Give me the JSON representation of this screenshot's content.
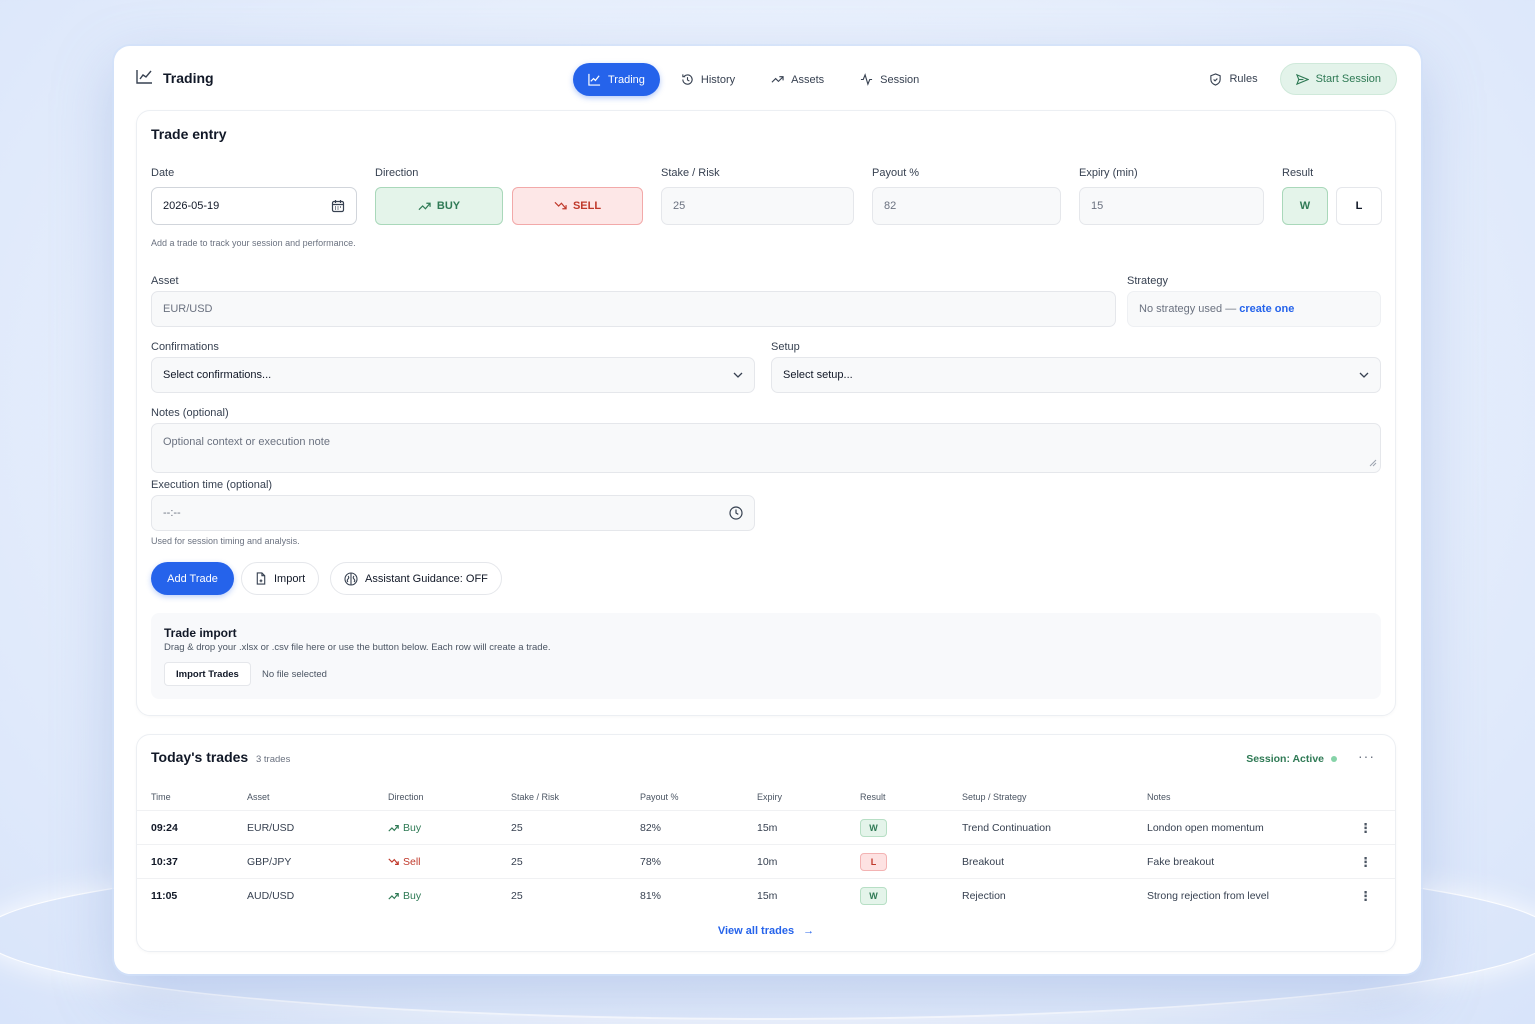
{
  "app": {
    "title": "Trading"
  },
  "nav": {
    "tabs": [
      {
        "label": "Trading",
        "icon": "chart-icon",
        "active": true
      },
      {
        "label": "History",
        "icon": "history-icon",
        "active": false
      },
      {
        "label": "Assets",
        "icon": "trend-icon",
        "active": false
      },
      {
        "label": "Session",
        "icon": "activity-icon",
        "active": false
      }
    ]
  },
  "header_actions": {
    "rules_label": "Rules",
    "start_session_label": "Start Session"
  },
  "entry": {
    "title": "Trade entry",
    "date": {
      "label": "Date",
      "value": "2026-05-19"
    },
    "direction": {
      "label": "Direction",
      "buy_label": "BUY",
      "sell_label": "SELL"
    },
    "stake": {
      "label": "Stake / Risk",
      "value": "25"
    },
    "payout": {
      "label": "Payout %",
      "value": "82"
    },
    "expiry": {
      "label": "Expiry (min)",
      "value": "15"
    },
    "result": {
      "label": "Result",
      "win_label": "W",
      "loss_label": "L",
      "selected": "W"
    },
    "help_text": "Add a trade to track your session and performance.",
    "asset": {
      "label": "Asset",
      "placeholder": "EUR/USD"
    },
    "strategy": {
      "label": "Strategy",
      "text": "No strategy used — ",
      "link": "create one"
    },
    "confirmations": {
      "label": "Confirmations",
      "placeholder": "Select confirmations..."
    },
    "setup": {
      "label": "Setup",
      "placeholder": "Select setup..."
    },
    "notes": {
      "label": "Notes (optional)",
      "placeholder": "Optional context or execution note"
    },
    "execution_time": {
      "label": "Execution time (optional)",
      "placeholder": "--:--",
      "hint": "Used for session timing and analysis."
    },
    "add_trade_label": "Add Trade",
    "import_label": "Import",
    "assistant_label": "Assistant Guidance: OFF"
  },
  "import": {
    "title": "Trade import",
    "description": "Drag & drop your .xlsx or .csv file here or use the button below. Each row will create a trade.",
    "button_label": "Import Trades",
    "file_status": "No file selected"
  },
  "trades": {
    "title": "Today's trades",
    "count": "3 trades",
    "session_status": "Session: Active",
    "more_label": "···",
    "columns": [
      "Time",
      "Asset",
      "Direction",
      "Stake / Risk",
      "Payout %",
      "Expiry",
      "Result",
      "Setup / Strategy",
      "Notes"
    ],
    "rows": [
      {
        "time": "09:24",
        "asset": "EUR/USD",
        "direction": "Buy",
        "stake": "25",
        "payout": "82%",
        "expiry": "15m",
        "result": "W",
        "setup": "Trend Continuation",
        "notes": "London open momentum"
      },
      {
        "time": "10:37",
        "asset": "GBP/JPY",
        "direction": "Sell",
        "stake": "25",
        "payout": "78%",
        "expiry": "10m",
        "result": "L",
        "setup": "Breakout",
        "notes": "Fake breakout"
      },
      {
        "time": "11:05",
        "asset": "AUD/USD",
        "direction": "Buy",
        "stake": "25",
        "payout": "81%",
        "expiry": "15m",
        "result": "W",
        "setup": "Rejection",
        "notes": "Strong rejection from level"
      }
    ],
    "view_all_label": "View all trades"
  },
  "colors": {
    "primary": "#2563eb",
    "win": "#2f7a55",
    "loss": "#c0392b",
    "background": "#e6eefc"
  }
}
